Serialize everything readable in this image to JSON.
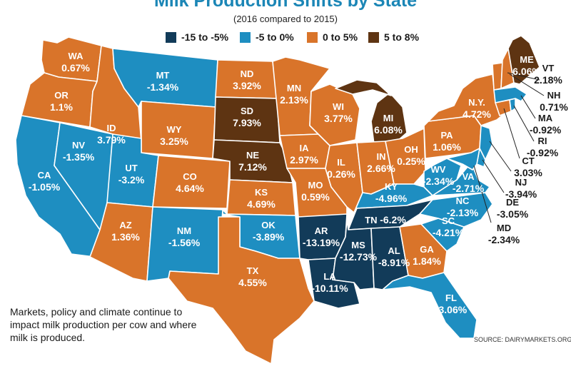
{
  "title": "Milk Production Shifts by State",
  "subtitle": "(2016 compared to 2015)",
  "legend": [
    {
      "label": "-15 to -5%",
      "color": "#123b59"
    },
    {
      "label": "-5 to 0%",
      "color": "#1e8ec1"
    },
    {
      "label": "0 to 5%",
      "color": "#d9742a"
    },
    {
      "label": "5 to 8%",
      "color": "#5e3412"
    }
  ],
  "note": "Markets, policy and climate continue to impact milk production per cow and where milk is produced.",
  "source": "SOURCE: DAIRYMARKETS.ORG",
  "states": {
    "WA": {
      "abbr": "WA",
      "value": "0.67%",
      "color": "#d9742a"
    },
    "OR": {
      "abbr": "OR",
      "value": "1.1%",
      "color": "#d9742a"
    },
    "CA": {
      "abbr": "CA",
      "value": "-1.05%",
      "color": "#1e8ec1"
    },
    "NV": {
      "abbr": "NV",
      "value": "-1.35%",
      "color": "#1e8ec1"
    },
    "ID": {
      "abbr": "ID",
      "value": "3.79%",
      "color": "#d9742a"
    },
    "MT": {
      "abbr": "MT",
      "value": "-1.34%",
      "color": "#1e8ec1"
    },
    "WY": {
      "abbr": "WY",
      "value": "3.25%",
      "color": "#d9742a"
    },
    "UT": {
      "abbr": "UT",
      "value": "-3.2%",
      "color": "#1e8ec1"
    },
    "AZ": {
      "abbr": "AZ",
      "value": "1.36%",
      "color": "#d9742a"
    },
    "CO": {
      "abbr": "CO",
      "value": "4.64%",
      "color": "#d9742a"
    },
    "NM": {
      "abbr": "NM",
      "value": "-1.56%",
      "color": "#1e8ec1"
    },
    "ND": {
      "abbr": "ND",
      "value": "3.92%",
      "color": "#d9742a"
    },
    "SD": {
      "abbr": "SD",
      "value": "7.93%",
      "color": "#5e3412"
    },
    "NE": {
      "abbr": "NE",
      "value": "7.12%",
      "color": "#5e3412"
    },
    "KS": {
      "abbr": "KS",
      "value": "4.69%",
      "color": "#d9742a"
    },
    "OK": {
      "abbr": "OK",
      "value": "-3.89%",
      "color": "#1e8ec1"
    },
    "TX": {
      "abbr": "TX",
      "value": "4.55%",
      "color": "#d9742a"
    },
    "MN": {
      "abbr": "MN",
      "value": "2.13%",
      "color": "#d9742a"
    },
    "IA": {
      "abbr": "IA",
      "value": "2.97%",
      "color": "#d9742a"
    },
    "MO": {
      "abbr": "MO",
      "value": "0.59%",
      "color": "#d9742a"
    },
    "AR": {
      "abbr": "AR",
      "value": "-13.19%",
      "color": "#123b59"
    },
    "LA": {
      "abbr": "LA",
      "value": "-10.11%",
      "color": "#123b59"
    },
    "WI": {
      "abbr": "WI",
      "value": "3.77%",
      "color": "#d9742a"
    },
    "IL": {
      "abbr": "IL",
      "value": "0.26%",
      "color": "#d9742a"
    },
    "MI": {
      "abbr": "MI",
      "value": "6.08%",
      "color": "#5e3412"
    },
    "IN": {
      "abbr": "IN",
      "value": "2.66%",
      "color": "#d9742a"
    },
    "OH": {
      "abbr": "OH",
      "value": "0.25%",
      "color": "#d9742a"
    },
    "KY": {
      "abbr": "KY",
      "value": "-4.96%",
      "color": "#1e8ec1"
    },
    "TN": {
      "abbr": "TN",
      "value": "-6.2%",
      "color": "#123b59"
    },
    "MS": {
      "abbr": "MS",
      "value": "-12.73%",
      "color": "#123b59"
    },
    "AL": {
      "abbr": "AL",
      "value": "-8.91%",
      "color": "#123b59"
    },
    "GA": {
      "abbr": "GA",
      "value": "1.84%",
      "color": "#d9742a"
    },
    "FL": {
      "abbr": "FL",
      "value": "-3.06%",
      "color": "#1e8ec1"
    },
    "SC": {
      "abbr": "SC",
      "value": "-4.21%",
      "color": "#1e8ec1"
    },
    "NC": {
      "abbr": "NC",
      "value": "-2.13%",
      "color": "#1e8ec1"
    },
    "VA": {
      "abbr": "VA",
      "value": "-2.71%",
      "color": "#1e8ec1"
    },
    "WV": {
      "abbr": "WV",
      "value": "-2.34%",
      "color": "#1e8ec1"
    },
    "PA": {
      "abbr": "PA",
      "value": "1.06%",
      "color": "#d9742a"
    },
    "NY": {
      "abbr": "N.Y.",
      "value": "4.72%",
      "color": "#d9742a"
    },
    "ME": {
      "abbr": "ME",
      "value": "6.06%",
      "color": "#5e3412"
    },
    "VT": {
      "abbr": "VT",
      "value": "2.18%",
      "color": "#d9742a"
    },
    "NH": {
      "abbr": "NH",
      "value": "0.71%",
      "color": "#d9742a"
    },
    "MA": {
      "abbr": "MA",
      "value": "-0.92%",
      "color": "#1e8ec1"
    },
    "RI": {
      "abbr": "RI",
      "value": "-0.92%",
      "color": "#1e8ec1"
    },
    "CT": {
      "abbr": "CT",
      "value": "3.03%",
      "color": "#d9742a"
    },
    "NJ": {
      "abbr": "NJ",
      "value": "-3.94%",
      "color": "#1e8ec1"
    },
    "DE": {
      "abbr": "DE",
      "value": "-3.05%",
      "color": "#1e8ec1"
    },
    "MD": {
      "abbr": "MD",
      "value": "-2.34%",
      "color": "#1e8ec1"
    }
  }
}
